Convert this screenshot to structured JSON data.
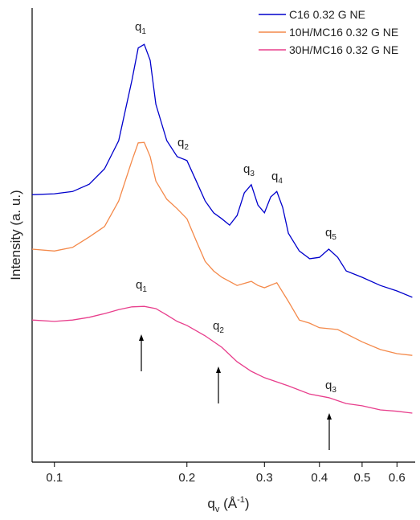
{
  "chart_data": {
    "type": "line",
    "xlabel": [
      "q",
      "v",
      " (Å",
      "-1",
      ")"
    ],
    "ylabel": "Intensity (a. u.)",
    "log_x": true,
    "xlim": [
      0.089,
      0.66
    ],
    "ylim": [
      0,
      100
    ],
    "xticks": [
      0.1,
      0.2,
      0.3,
      0.4,
      0.5,
      0.6
    ],
    "legend": "upper right",
    "series": [
      {
        "name": "C16 0.32 G NE",
        "color": "#0000cc",
        "x": [
          0.089,
          0.1,
          0.11,
          0.12,
          0.13,
          0.14,
          0.15,
          0.155,
          0.16,
          0.165,
          0.17,
          0.18,
          0.19,
          0.2,
          0.21,
          0.22,
          0.23,
          0.24,
          0.25,
          0.26,
          0.27,
          0.28,
          0.29,
          0.3,
          0.31,
          0.32,
          0.33,
          0.34,
          0.36,
          0.38,
          0.4,
          0.42,
          0.44,
          0.46,
          0.5,
          0.55,
          0.6,
          0.65
        ],
        "values": [
          58.9,
          59.1,
          59.6,
          61.2,
          64.6,
          70.8,
          84.1,
          91.2,
          92.0,
          88.5,
          78.8,
          70.8,
          67.3,
          66.4,
          61.9,
          57.5,
          54.9,
          53.6,
          52.2,
          54.3,
          59.3,
          61.1,
          56.6,
          54.9,
          58.4,
          59.6,
          56.1,
          50.4,
          46.5,
          44.8,
          45.1,
          46.9,
          45.1,
          42.1,
          40.7,
          38.9,
          37.7,
          36.3
        ]
      },
      {
        "name": "10H/MC16 0.32 G NE",
        "color": "#f4894a",
        "x": [
          0.089,
          0.1,
          0.11,
          0.12,
          0.13,
          0.14,
          0.15,
          0.155,
          0.16,
          0.165,
          0.17,
          0.18,
          0.19,
          0.2,
          0.21,
          0.22,
          0.23,
          0.24,
          0.26,
          0.28,
          0.29,
          0.3,
          0.32,
          0.34,
          0.36,
          0.38,
          0.4,
          0.44,
          0.5,
          0.55,
          0.6,
          0.65
        ],
        "values": [
          46.9,
          46.5,
          47.3,
          49.6,
          51.9,
          57.5,
          66.4,
          70.3,
          70.4,
          67.3,
          61.9,
          57.9,
          55.8,
          53.6,
          48.7,
          44.2,
          42.1,
          40.7,
          38.9,
          39.8,
          38.9,
          38.4,
          39.5,
          35.4,
          31.3,
          30.6,
          29.6,
          29.2,
          26.5,
          24.8,
          23.9,
          23.5
        ]
      },
      {
        "name": "30H/MC16 0.32 G NE",
        "color": "#e83e8c",
        "x": [
          0.089,
          0.1,
          0.11,
          0.12,
          0.13,
          0.14,
          0.15,
          0.16,
          0.17,
          0.18,
          0.19,
          0.2,
          0.22,
          0.24,
          0.26,
          0.28,
          0.3,
          0.34,
          0.38,
          0.42,
          0.46,
          0.5,
          0.55,
          0.6,
          0.65
        ],
        "values": [
          31.3,
          31.0,
          31.3,
          31.9,
          32.7,
          33.6,
          34.2,
          34.3,
          33.8,
          32.4,
          31.0,
          30.1,
          27.8,
          25.3,
          22.1,
          20.0,
          18.6,
          16.8,
          15.0,
          14.2,
          12.9,
          12.4,
          11.5,
          11.2,
          10.8
        ]
      }
    ],
    "annotations": [
      {
        "text": "q",
        "sub": "1"
      },
      {
        "text": "q",
        "sub": "2"
      },
      {
        "text": "q",
        "sub": "3"
      },
      {
        "text": "q",
        "sub": "4"
      },
      {
        "text": "q",
        "sub": "5"
      },
      {
        "text": "q",
        "sub": "1"
      },
      {
        "text": "q",
        "sub": "2"
      },
      {
        "text": "q",
        "sub": "3"
      }
    ]
  }
}
